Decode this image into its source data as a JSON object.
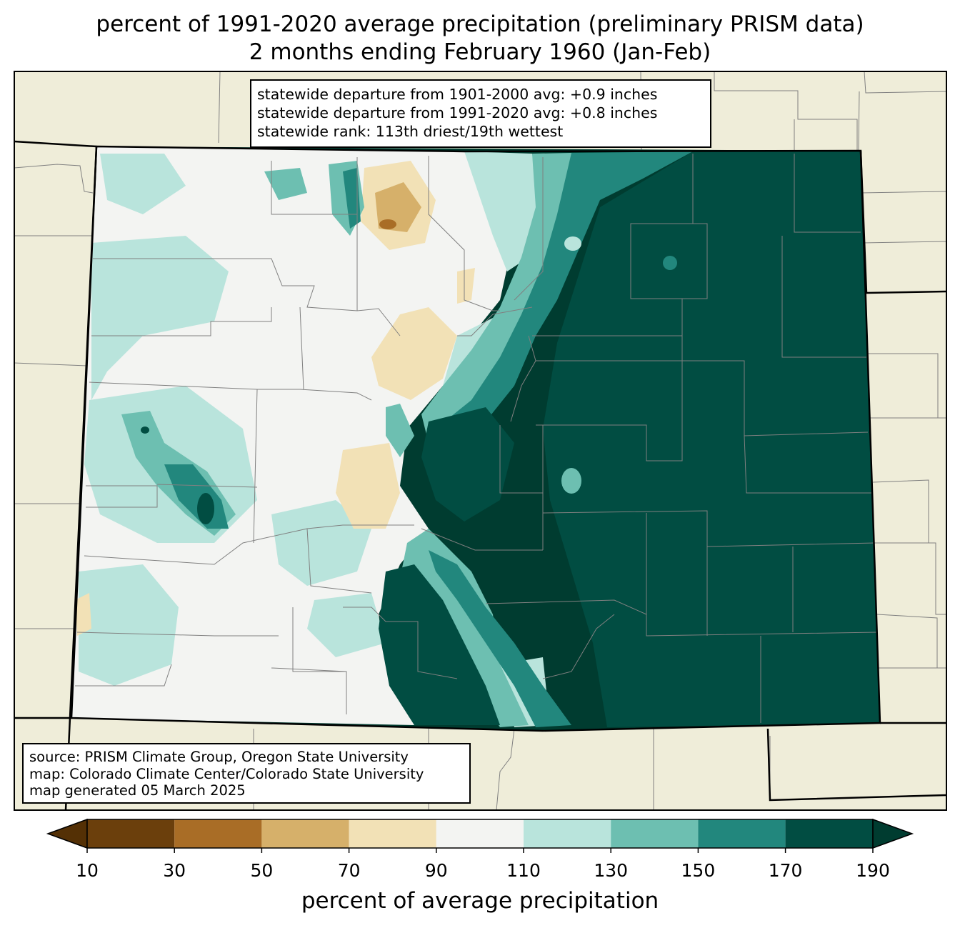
{
  "title": {
    "line1": "percent of 1991-2020 average precipitation (preliminary PRISM data)",
    "line2": "2 months ending February 1960 (Jan-Feb)"
  },
  "stats": {
    "line1": "statewide departure from 1901-2000 avg: +0.9 inches",
    "line2": "statewide departure from 1991-2020 avg: +0.8 inches",
    "line3": "statewide rank: 113th driest/19th wettest"
  },
  "source": {
    "line1": "source: PRISM Climate Group, Oregon State University",
    "line2": "map: Colorado Climate Center/Colorado State University",
    "line3": "map generated 05 March 2025"
  },
  "colorbar": {
    "label": "percent of average precipitation",
    "ticks": [
      "10",
      "30",
      "50",
      "70",
      "90",
      "110",
      "130",
      "150",
      "170",
      "190"
    ],
    "colors": [
      "#6b3f0c",
      "#a96d26",
      "#d6b06a",
      "#f2e1b6",
      "#f3f4f2",
      "#b9e4dc",
      "#6dbfb1",
      "#22877d",
      "#014d42"
    ],
    "under_color": "#543005",
    "over_color": "#003c30",
    "extend": "both"
  },
  "map_colors": {
    "land_background": "#efedd9",
    "state_border": "#000000",
    "county_lines": "#808080"
  }
}
